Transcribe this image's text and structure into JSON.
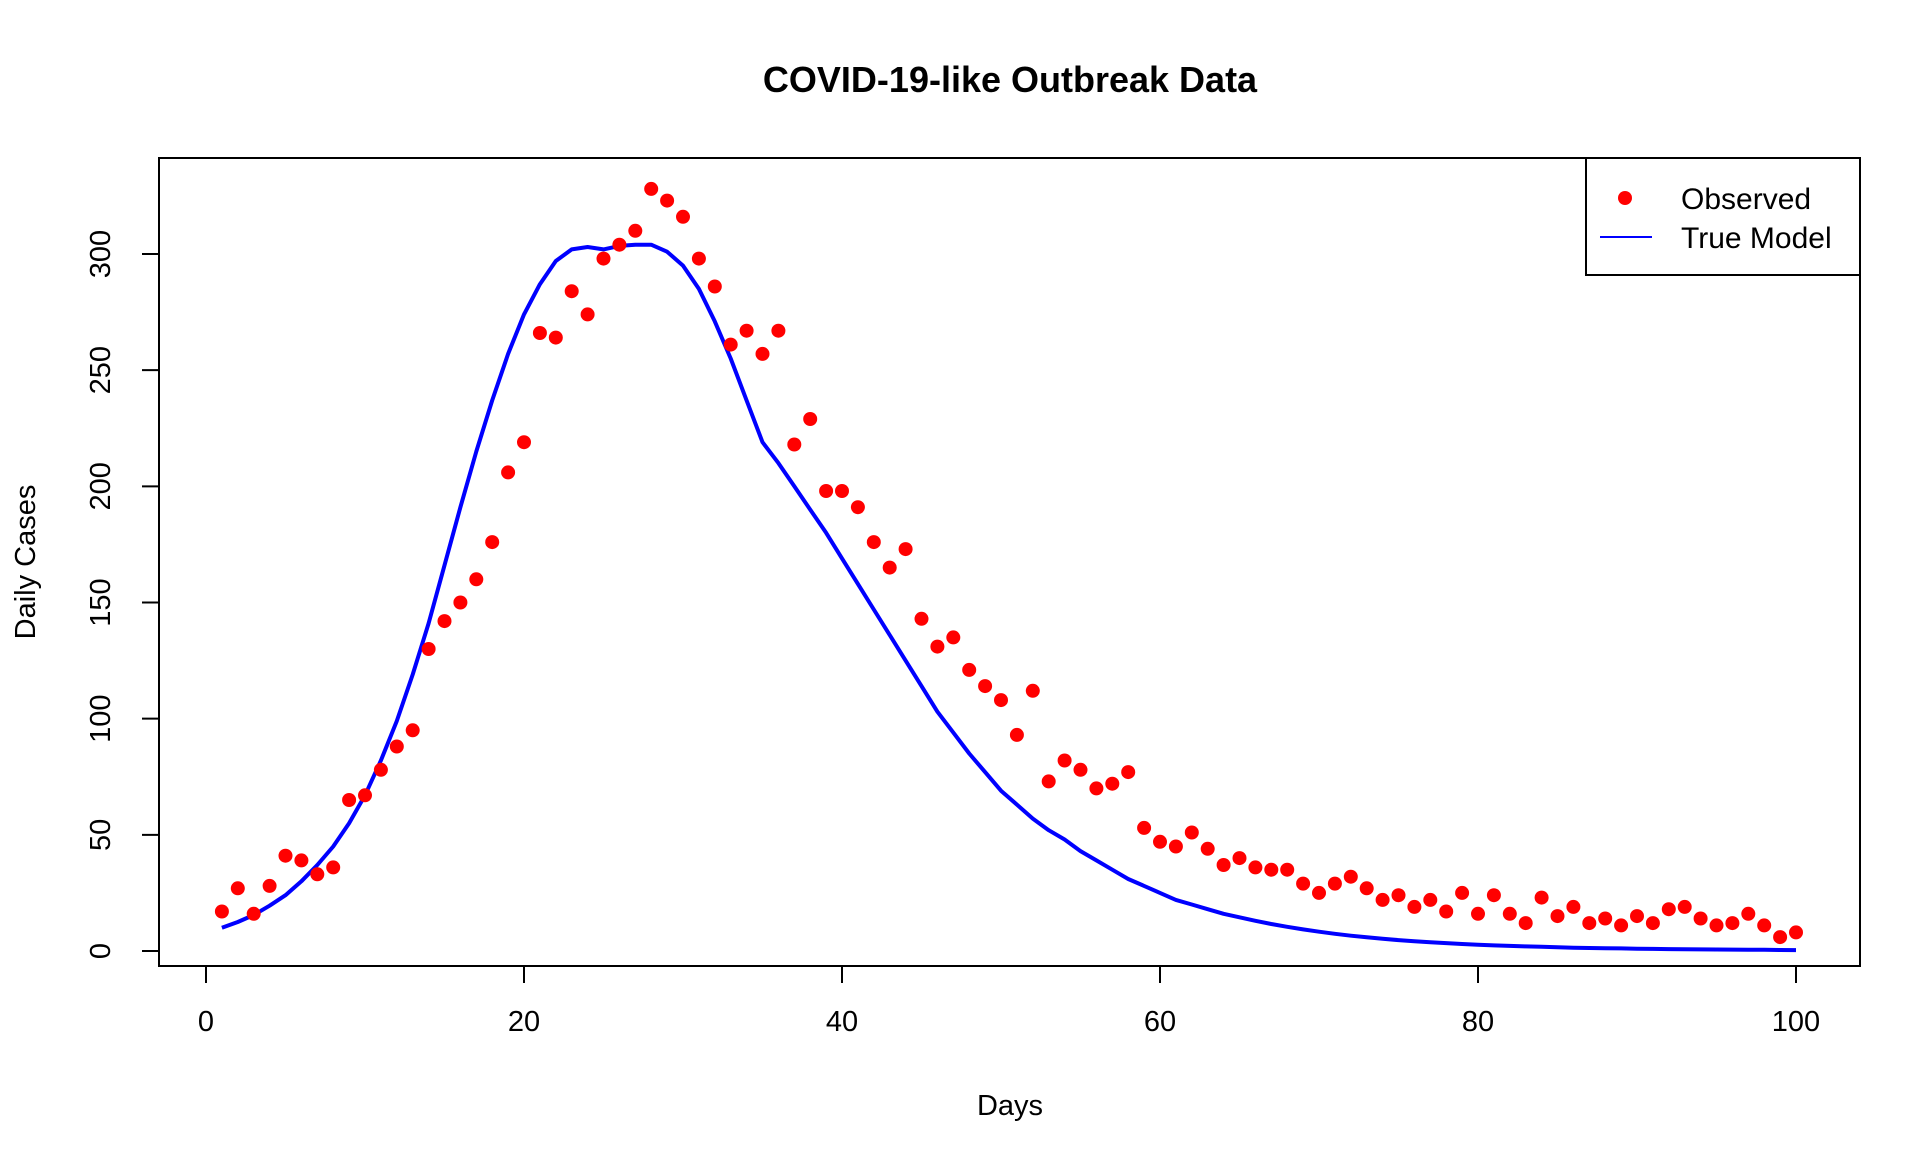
{
  "chart_data": {
    "type": "scatter",
    "title": "COVID-19-like Outbreak Data",
    "xlabel": "Days",
    "ylabel": "Daily Cases",
    "xlim": [
      1,
      100
    ],
    "ylim": [
      0,
      330
    ],
    "xticks": [
      0,
      20,
      40,
      60,
      80,
      100
    ],
    "yticks": [
      0,
      50,
      100,
      150,
      200,
      250,
      300
    ],
    "grid": false,
    "legend_position": "top-right",
    "series": [
      {
        "name": "Observed",
        "kind": "points",
        "color": "#ff0000",
        "x": [
          1,
          2,
          3,
          4,
          5,
          6,
          7,
          8,
          9,
          10,
          11,
          12,
          13,
          14,
          15,
          16,
          17,
          18,
          19,
          20,
          21,
          22,
          23,
          24,
          25,
          26,
          27,
          28,
          29,
          30,
          31,
          32,
          33,
          34,
          35,
          36,
          37,
          38,
          39,
          40,
          41,
          42,
          43,
          44,
          45,
          46,
          47,
          48,
          49,
          50,
          51,
          52,
          53,
          54,
          55,
          56,
          57,
          58,
          59,
          60,
          61,
          62,
          63,
          64,
          65,
          66,
          67,
          68,
          69,
          70,
          71,
          72,
          73,
          74,
          75,
          76,
          77,
          78,
          79,
          80,
          81,
          82,
          83,
          84,
          85,
          86,
          87,
          88,
          89,
          90,
          91,
          92,
          93,
          94,
          95,
          96,
          97,
          98,
          99,
          100
        ],
        "y": [
          17,
          27,
          16,
          28,
          41,
          39,
          33,
          36,
          65,
          67,
          78,
          88,
          95,
          130,
          142,
          150,
          160,
          176,
          206,
          219,
          266,
          264,
          284,
          274,
          298,
          304,
          310,
          328,
          323,
          316,
          298,
          286,
          261,
          267,
          257,
          267,
          218,
          229,
          198,
          198,
          191,
          176,
          165,
          173,
          143,
          131,
          135,
          121,
          114,
          108,
          93,
          112,
          73,
          82,
          78,
          70,
          72,
          77,
          53,
          47,
          45,
          51,
          44,
          37,
          40,
          36,
          35,
          35,
          29,
          25,
          29,
          32,
          27,
          22,
          24,
          19,
          22,
          17,
          25,
          16,
          24,
          16,
          12,
          23,
          15,
          19,
          12,
          14,
          11,
          15,
          12,
          18,
          19,
          14,
          11,
          12,
          16,
          11,
          6,
          8
        ]
      },
      {
        "name": "True Model",
        "kind": "line",
        "color": "#0000ff",
        "x": [
          1,
          2,
          3,
          4,
          5,
          6,
          7,
          8,
          9,
          10,
          11,
          12,
          13,
          14,
          15,
          16,
          17,
          18,
          19,
          20,
          21,
          22,
          23,
          24,
          25,
          26,
          27,
          28,
          29,
          30,
          31,
          32,
          33,
          34,
          35,
          36,
          37,
          38,
          39,
          40,
          41,
          42,
          43,
          44,
          45,
          46,
          47,
          48,
          49,
          50,
          51,
          52,
          53,
          54,
          55,
          56,
          57,
          58,
          59,
          60,
          61,
          62,
          63,
          64,
          65,
          66,
          67,
          68,
          69,
          70,
          71,
          72,
          73,
          74,
          75,
          76,
          77,
          78,
          79,
          80,
          81,
          82,
          83,
          84,
          85,
          86,
          87,
          88,
          89,
          90,
          91,
          92,
          93,
          94,
          95,
          96,
          97,
          98,
          99,
          100
        ],
        "y": [
          10,
          12.5,
          15.5,
          19.5,
          24,
          30,
          37,
          45,
          55,
          67,
          82,
          99,
          119,
          141,
          166,
          191,
          215,
          237,
          257,
          274,
          287,
          297,
          302,
          303,
          302,
          303.5,
          304,
          304,
          301,
          295,
          285,
          271,
          255,
          237,
          219,
          210,
          200,
          190,
          180,
          169,
          158,
          147,
          136,
          125,
          114,
          103,
          94,
          85,
          77,
          69,
          63,
          57,
          52,
          48,
          43,
          39,
          35,
          31,
          28,
          25,
          22,
          20,
          18,
          16,
          14.5,
          13,
          11.6,
          10.4,
          9.3,
          8.3,
          7.4,
          6.6,
          5.9,
          5.3,
          4.7,
          4.2,
          3.8,
          3.4,
          3.0,
          2.7,
          2.4,
          2.2,
          2.0,
          1.8,
          1.6,
          1.4,
          1.3,
          1.2,
          1.1,
          1.0,
          0.9,
          0.8,
          0.75,
          0.7,
          0.65,
          0.6,
          0.55,
          0.5,
          0.45,
          0.4
        ]
      }
    ]
  }
}
